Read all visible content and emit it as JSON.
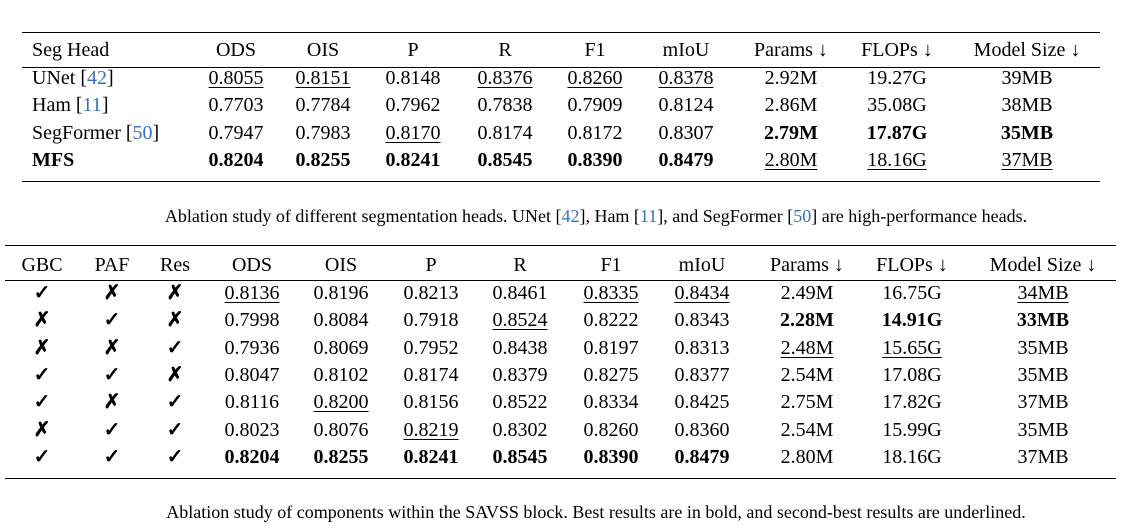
{
  "tables": [
    {
      "header": [
        "Seg Head",
        "ODS",
        "OIS",
        "P",
        "R",
        "F1",
        "mIoU",
        "Params ↓",
        "FLOPs ↓",
        "Model Size ↓"
      ],
      "rows": [
        [
          [
            {
              "text": "UNet ["
            },
            {
              "text": "42",
              "link": true
            },
            {
              "text": "]"
            }
          ],
          "0.8055",
          "0.8151",
          "0.8148",
          "0.8376",
          "0.8260",
          "0.8378",
          "2.92M",
          "19.27G",
          "39MB"
        ],
        [
          [
            {
              "text": "Ham ["
            },
            {
              "text": "11",
              "link": true
            },
            {
              "text": "]"
            }
          ],
          "0.7703",
          "0.7784",
          "0.7962",
          "0.7838",
          "0.7909",
          "0.8124",
          "2.86M",
          "35.08G",
          "38MB"
        ],
        [
          [
            {
              "text": "SegFormer ["
            },
            {
              "text": "50",
              "link": true
            },
            {
              "text": "]"
            }
          ],
          "0.7947",
          "0.7983",
          "0.8170",
          "0.8174",
          "0.8172",
          "0.8307",
          "2.79M",
          "17.87G",
          "35MB"
        ],
        [
          "MFS",
          "0.8204",
          "0.8255",
          "0.8241",
          "0.8545",
          "0.8390",
          "0.8479",
          "2.80M",
          "18.16G",
          "37MB"
        ]
      ],
      "bold": [
        [
          2,
          7
        ],
        [
          2,
          8
        ],
        [
          2,
          9
        ],
        [
          3,
          0
        ],
        [
          3,
          1
        ],
        [
          3,
          2
        ],
        [
          3,
          3
        ],
        [
          3,
          4
        ],
        [
          3,
          5
        ],
        [
          3,
          6
        ]
      ],
      "underline": [
        [
          0,
          1
        ],
        [
          0,
          2
        ],
        [
          0,
          4
        ],
        [
          0,
          5
        ],
        [
          0,
          6
        ],
        [
          2,
          3
        ],
        [
          3,
          7
        ],
        [
          3,
          8
        ],
        [
          3,
          9
        ]
      ],
      "caption": [
        {
          "text": "Ablation study of different segmentation heads. UNet ["
        },
        {
          "text": "42",
          "link": true
        },
        {
          "text": "], Ham ["
        },
        {
          "text": "11",
          "link": true
        },
        {
          "text": "], and SegFormer ["
        },
        {
          "text": "50",
          "link": true
        },
        {
          "text": "] are high-performance heads."
        }
      ]
    },
    {
      "header": [
        "GBC",
        "PAF",
        "Res",
        "ODS",
        "OIS",
        "P",
        "R",
        "F1",
        "mIoU",
        "Params ↓",
        "FLOPs ↓",
        "Model Size ↓"
      ],
      "rows": [
        [
          "✓",
          "✗",
          "✗",
          "0.8136",
          "0.8196",
          "0.8213",
          "0.8461",
          "0.8335",
          "0.8434",
          "2.49M",
          "16.75G",
          "34MB"
        ],
        [
          "✗",
          "✓",
          "✗",
          "0.7998",
          "0.8084",
          "0.7918",
          "0.8524",
          "0.8222",
          "0.8343",
          "2.28M",
          "14.91G",
          "33MB"
        ],
        [
          "✗",
          "✗",
          "✓",
          "0.7936",
          "0.8069",
          "0.7952",
          "0.8438",
          "0.8197",
          "0.8313",
          "2.48M",
          "15.65G",
          "35MB"
        ],
        [
          "✓",
          "✓",
          "✗",
          "0.8047",
          "0.8102",
          "0.8174",
          "0.8379",
          "0.8275",
          "0.8377",
          "2.54M",
          "17.08G",
          "35MB"
        ],
        [
          "✓",
          "✗",
          "✓",
          "0.8116",
          "0.8200",
          "0.8156",
          "0.8522",
          "0.8334",
          "0.8425",
          "2.75M",
          "17.82G",
          "37MB"
        ],
        [
          "✗",
          "✓",
          "✓",
          "0.8023",
          "0.8076",
          "0.8219",
          "0.8302",
          "0.8260",
          "0.8360",
          "2.54M",
          "15.99G",
          "35MB"
        ],
        [
          "✓",
          "✓",
          "✓",
          "0.8204",
          "0.8255",
          "0.8241",
          "0.8545",
          "0.8390",
          "0.8479",
          "2.80M",
          "18.16G",
          "37MB"
        ]
      ],
      "bold": [
        [
          1,
          9
        ],
        [
          1,
          10
        ],
        [
          1,
          11
        ],
        [
          6,
          3
        ],
        [
          6,
          4
        ],
        [
          6,
          5
        ],
        [
          6,
          6
        ],
        [
          6,
          7
        ],
        [
          6,
          8
        ]
      ],
      "underline": [
        [
          0,
          3
        ],
        [
          0,
          7
        ],
        [
          0,
          8
        ],
        [
          0,
          11
        ],
        [
          1,
          6
        ],
        [
          2,
          9
        ],
        [
          2,
          10
        ],
        [
          4,
          4
        ],
        [
          5,
          5
        ]
      ],
      "caption": [
        {
          "text": "Ablation study of components within the SAVSS block. Best results are in bold, and second-best results are underlined."
        }
      ]
    }
  ]
}
